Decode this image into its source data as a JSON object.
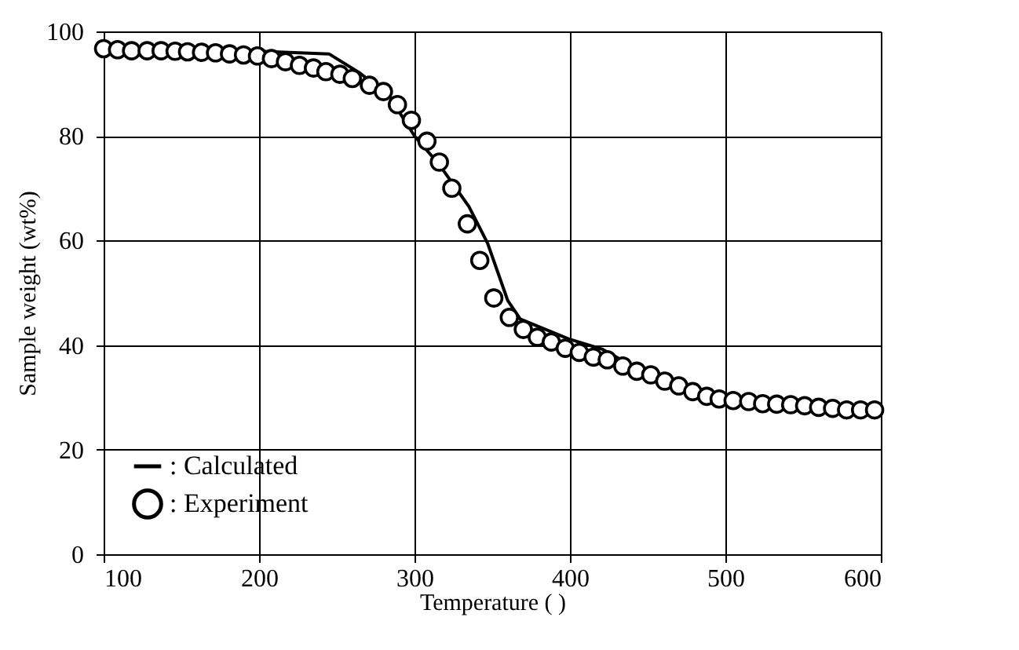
{
  "chart_data": {
    "type": "line",
    "xlabel": "Temperature (   )",
    "ylabel": "Sample weight (wt%)",
    "xlim": [
      100,
      600
    ],
    "ylim": [
      0,
      100
    ],
    "xticks": [
      100,
      200,
      300,
      400,
      500,
      600
    ],
    "yticks": [
      0,
      20,
      40,
      60,
      80,
      100
    ],
    "grid": true,
    "legend": "bottom left",
    "series": [
      {
        "name": ": Calculated",
        "color": "#000000",
        "line_style": "solid",
        "x": [
          100,
          150,
          200,
          245,
          265,
          284,
          300,
          316,
          335,
          347,
          360,
          368,
          399,
          421,
          443,
          470,
          496,
          524,
          551,
          578,
          596
        ],
        "values": [
          96.5,
          96.4,
          96.2,
          95.7,
          92,
          87.5,
          80,
          74.5,
          66.5,
          59.5,
          48.5,
          45,
          41.2,
          39.2,
          35.5,
          32.2,
          29.7,
          28.8,
          28.4,
          27.6,
          27.6
        ]
      },
      {
        "name": ": Experiment",
        "type": "scatter",
        "color": "#000000",
        "marker": "circle",
        "x": [
          100,
          109,
          118,
          128,
          137,
          146,
          154,
          163,
          172,
          181,
          190,
          199,
          208,
          217,
          226,
          235,
          243,
          252,
          260,
          271,
          280,
          289,
          298,
          308,
          316,
          324,
          334,
          342,
          351,
          361,
          370,
          379,
          388,
          397,
          406,
          415,
          424,
          434,
          443,
          452,
          461,
          470,
          479,
          488,
          496,
          505,
          515,
          524,
          533,
          542,
          551,
          560,
          569,
          578,
          587,
          596
        ],
        "values": [
          96.7,
          96.5,
          96.3,
          96.3,
          96.3,
          96.2,
          96.1,
          96,
          95.9,
          95.7,
          95.5,
          95.3,
          94.8,
          94.2,
          93.5,
          93,
          92.3,
          91.8,
          91,
          89.7,
          88.5,
          86,
          83,
          79,
          75,
          70,
          63.2,
          56.2,
          49,
          45.3,
          43,
          41.5,
          40.6,
          39.4,
          38.6,
          37.7,
          37.2,
          36,
          35,
          34.3,
          33.1,
          32.2,
          31.1,
          30.2,
          29.7,
          29.4,
          29.2,
          28.8,
          28.7,
          28.6,
          28.4,
          28.1,
          27.9,
          27.6,
          27.6,
          27.6
        ]
      }
    ]
  }
}
